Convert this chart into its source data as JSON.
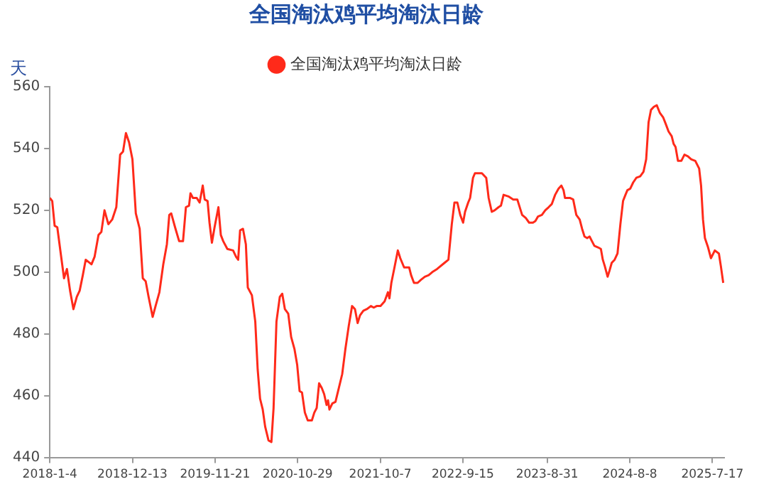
{
  "chart_data": {
    "type": "line",
    "title": "全国淘汰鸡平均淘汰日龄",
    "ylabel": "天",
    "legend": "top",
    "grid": false,
    "marker": "none",
    "line_style": "solid",
    "xlim": [
      "2018-01-04",
      "2025-09-04"
    ],
    "xticks": [
      {
        "value": "2018-01-04",
        "label": "2018-1-4"
      },
      {
        "value": "2018-12-13",
        "label": "2018-12-13"
      },
      {
        "value": "2019-11-21",
        "label": "2019-11-21"
      },
      {
        "value": "2020-10-29",
        "label": "2020-10-29"
      },
      {
        "value": "2021-10-07",
        "label": "2021-10-7"
      },
      {
        "value": "2022-09-15",
        "label": "2022-9-15"
      },
      {
        "value": "2023-08-31",
        "label": "2023-8-31"
      },
      {
        "value": "2024-08-08",
        "label": "2024-8-8"
      },
      {
        "value": "2025-07-17",
        "label": "2025-7-17"
      }
    ],
    "ylim": [
      440,
      560
    ],
    "yticks": [
      440,
      460,
      480,
      500,
      520,
      540,
      560
    ],
    "series": [
      {
        "name": "全国淘汰鸡平均淘汰日龄",
        "color": "#ff2a1a",
        "x": [
          "2018-01-04",
          "2018-01-14",
          "2018-01-24",
          "2018-02-04",
          "2018-02-20",
          "2018-03-04",
          "2018-03-16",
          "2018-03-29",
          "2018-04-12",
          "2018-04-26",
          "2018-05-08",
          "2018-05-21",
          "2018-06-02",
          "2018-06-26",
          "2018-07-09",
          "2018-07-25",
          "2018-08-06",
          "2018-08-19",
          "2018-09-04",
          "2018-09-20",
          "2018-10-07",
          "2018-10-23",
          "2018-11-04",
          "2018-11-16",
          "2018-11-29",
          "2018-12-13",
          "2018-12-27",
          "2019-01-12",
          "2019-01-25",
          "2019-02-06",
          "2019-02-18",
          "2019-03-07",
          "2019-03-19",
          "2019-04-04",
          "2019-04-20",
          "2019-05-05",
          "2019-05-15",
          "2019-05-23",
          "2019-06-08",
          "2019-06-25",
          "2019-07-11",
          "2019-07-23",
          "2019-08-05",
          "2019-08-11",
          "2019-08-21",
          "2019-09-06",
          "2019-09-18",
          "2019-10-01",
          "2019-10-09",
          "2019-10-21",
          "2019-10-29",
          "2019-11-08",
          "2019-11-19",
          "2019-12-05",
          "2019-12-15",
          "2019-12-25",
          "2020-01-11",
          "2020-02-04",
          "2020-02-16",
          "2020-02-25",
          "2020-03-04",
          "2020-03-16",
          "2020-03-28",
          "2020-04-05",
          "2020-04-22",
          "2020-05-06",
          "2020-05-16",
          "2020-05-26",
          "2020-06-06",
          "2020-06-16",
          "2020-06-30",
          "2020-07-12",
          "2020-07-21",
          "2020-08-02",
          "2020-08-16",
          "2020-08-26",
          "2020-09-06",
          "2020-09-20",
          "2020-10-02",
          "2020-10-16",
          "2020-10-27",
          "2020-11-06",
          "2020-11-16",
          "2020-11-28",
          "2020-12-10",
          "2020-12-27",
          "2021-01-06",
          "2021-01-16",
          "2021-01-26",
          "2021-02-06",
          "2021-02-16",
          "2021-02-26",
          "2021-03-04",
          "2021-03-10",
          "2021-03-22",
          "2021-04-04",
          "2021-04-18",
          "2021-05-02",
          "2021-05-15",
          "2021-05-29",
          "2021-06-12",
          "2021-06-24",
          "2021-07-05",
          "2021-07-15",
          "2021-07-29",
          "2021-08-12",
          "2021-08-29",
          "2021-09-10",
          "2021-09-22",
          "2021-10-08",
          "2021-10-25",
          "2021-11-08",
          "2021-11-14",
          "2021-11-22",
          "2021-12-05",
          "2021-12-19",
          "2021-12-29",
          "2022-01-14",
          "2022-02-04",
          "2022-02-12",
          "2022-02-24",
          "2022-03-11",
          "2022-03-25",
          "2022-04-10",
          "2022-04-26",
          "2022-05-11",
          "2022-05-31",
          "2022-07-01",
          "2022-07-17",
          "2022-07-31",
          "2022-08-11",
          "2022-08-23",
          "2022-09-04",
          "2022-09-16",
          "2022-09-24",
          "2022-10-07",
          "2022-10-15",
          "2022-10-27",
          "2022-11-04",
          "2022-11-21",
          "2022-12-03",
          "2022-12-21",
          "2022-12-31",
          "2023-01-13",
          "2023-01-25",
          "2023-02-10",
          "2023-02-20",
          "2023-03-03",
          "2023-03-23",
          "2023-04-12",
          "2023-04-29",
          "2023-05-07",
          "2023-05-19",
          "2023-06-03",
          "2023-06-17",
          "2023-07-03",
          "2023-07-13",
          "2023-07-24",
          "2023-08-09",
          "2023-08-23",
          "2023-09-06",
          "2023-09-19",
          "2023-10-03",
          "2023-10-17",
          "2023-10-29",
          "2023-11-07",
          "2023-11-13",
          "2023-12-03",
          "2023-12-17",
          "2023-12-30",
          "2024-01-13",
          "2024-01-23",
          "2024-02-02",
          "2024-02-13",
          "2024-02-23",
          "2024-03-04",
          "2024-03-14",
          "2024-03-29",
          "2024-04-10",
          "2024-04-18",
          "2024-04-26",
          "2024-05-08",
          "2024-05-16",
          "2024-05-25",
          "2024-06-06",
          "2024-06-18",
          "2024-06-30",
          "2024-07-11",
          "2024-07-21",
          "2024-07-29",
          "2024-08-10",
          "2024-08-22",
          "2024-09-04",
          "2024-09-20",
          "2024-10-04",
          "2024-10-15",
          "2024-10-25",
          "2024-11-04",
          "2024-11-16",
          "2024-11-28",
          "2024-12-11",
          "2024-12-25",
          "2025-01-04",
          "2025-01-16",
          "2025-01-29",
          "2025-02-06",
          "2025-02-14",
          "2025-02-24",
          "2025-03-10",
          "2025-03-23",
          "2025-04-06",
          "2025-04-20",
          "2025-05-07",
          "2025-05-23",
          "2025-05-31",
          "2025-06-08",
          "2025-06-16",
          "2025-06-29",
          "2025-07-11",
          "2025-07-27",
          "2025-08-13",
          "2025-08-21",
          "2025-08-31"
        ],
        "values": [
          524,
          523,
          515,
          514.5,
          505,
          498,
          501,
          494,
          488,
          492,
          494,
          499,
          504,
          502.5,
          505,
          512,
          513,
          520,
          515.5,
          517,
          521,
          538,
          539,
          545,
          542,
          536.5,
          519,
          514,
          498,
          497,
          492,
          485.5,
          489,
          493.5,
          502.5,
          509,
          518.5,
          519,
          514.5,
          510,
          510,
          521,
          521.5,
          525.5,
          524,
          524,
          522.5,
          528,
          523.5,
          523,
          516,
          509.5,
          514.5,
          521,
          512,
          510,
          507.5,
          507,
          505,
          504,
          513.5,
          514,
          509,
          495,
          492.5,
          484,
          468.5,
          459,
          455.5,
          450,
          445.5,
          445,
          456,
          484,
          492,
          493,
          488,
          486.5,
          479,
          475,
          470,
          461.5,
          461,
          454.5,
          452,
          452,
          454.5,
          456,
          464,
          462.5,
          460.5,
          457,
          458.5,
          455.5,
          457.5,
          458,
          462.5,
          467,
          475,
          482.5,
          489,
          488,
          483.5,
          486,
          487.5,
          488,
          489,
          488.5,
          489,
          489,
          490.5,
          493.5,
          491.5,
          496.5,
          501.5,
          507,
          504.5,
          501.5,
          501.5,
          499,
          496.5,
          496.5,
          497.5,
          498.5,
          499,
          500,
          501,
          503,
          504,
          515.5,
          522.5,
          522.5,
          518.5,
          516,
          519.5,
          522.5,
          524,
          530.5,
          532,
          532,
          532,
          530.5,
          524,
          519.5,
          520,
          521,
          521.5,
          525,
          524.5,
          523.5,
          523.5,
          521.5,
          518.5,
          517.5,
          516,
          516,
          516.5,
          518,
          518.5,
          520,
          521,
          522,
          525,
          527,
          528,
          526.5,
          524,
          524,
          523.5,
          518.5,
          517,
          514,
          511.5,
          511,
          511.5,
          510,
          508.5,
          508,
          507.5,
          504,
          502,
          498.5,
          500.5,
          503,
          504,
          506,
          515.5,
          523,
          525,
          526.5,
          527,
          529,
          530.5,
          531,
          532.5,
          536.5,
          548.5,
          552.5,
          553.5,
          554,
          551.5,
          550,
          548,
          545.5,
          544,
          541.5,
          540.5,
          536,
          536,
          538,
          537.5,
          536.5,
          536,
          533.5,
          528,
          517,
          511,
          508,
          504.5,
          507,
          506,
          502,
          496.5
        ]
      }
    ]
  }
}
